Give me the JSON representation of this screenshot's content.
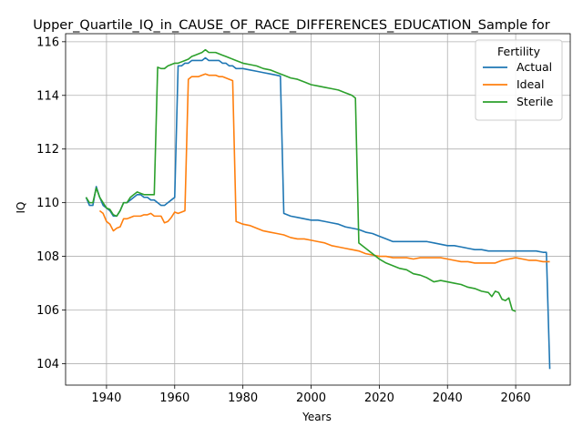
{
  "chart_data": {
    "type": "line",
    "title": "Upper_Quartile_IQ_in_CAUSE_OF_RACE_DIFFERENCES_EDUCATION_Sample for",
    "xlabel": "Years",
    "ylabel": "IQ",
    "xlim": [
      1928,
      2076
    ],
    "ylim": [
      103.2,
      116.3
    ],
    "x_ticks": [
      1940,
      1960,
      1980,
      2000,
      2020,
      2040,
      2060
    ],
    "y_ticks": [
      104,
      106,
      108,
      110,
      112,
      114,
      116
    ],
    "grid": true,
    "legend": {
      "title": "Fertility",
      "placement": "top-right"
    },
    "series": [
      {
        "name": "Actual",
        "color": "#1f77b4",
        "points": [
          [
            1934,
            110.2
          ],
          [
            1935,
            109.9
          ],
          [
            1936,
            109.9
          ],
          [
            1937,
            110.6
          ],
          [
            1938,
            110.2
          ],
          [
            1939,
            109.9
          ],
          [
            1940,
            109.8
          ],
          [
            1941,
            109.7
          ],
          [
            1942,
            109.5
          ],
          [
            1943,
            109.5
          ],
          [
            1944,
            109.7
          ],
          [
            1945,
            110.0
          ],
          [
            1946,
            110.0
          ],
          [
            1947,
            110.1
          ],
          [
            1948,
            110.2
          ],
          [
            1949,
            110.3
          ],
          [
            1950,
            110.3
          ],
          [
            1951,
            110.2
          ],
          [
            1952,
            110.2
          ],
          [
            1953,
            110.1
          ],
          [
            1954,
            110.1
          ],
          [
            1955,
            110.0
          ],
          [
            1956,
            109.9
          ],
          [
            1957,
            109.9
          ],
          [
            1958,
            110.0
          ],
          [
            1959,
            110.1
          ],
          [
            1960,
            110.2
          ],
          [
            1961,
            115.1
          ],
          [
            1962,
            115.1
          ],
          [
            1963,
            115.2
          ],
          [
            1964,
            115.2
          ],
          [
            1965,
            115.3
          ],
          [
            1966,
            115.3
          ],
          [
            1967,
            115.3
          ],
          [
            1968,
            115.3
          ],
          [
            1969,
            115.4
          ],
          [
            1970,
            115.3
          ],
          [
            1971,
            115.3
          ],
          [
            1972,
            115.3
          ],
          [
            1973,
            115.3
          ],
          [
            1974,
            115.2
          ],
          [
            1975,
            115.2
          ],
          [
            1976,
            115.1
          ],
          [
            1977,
            115.1
          ],
          [
            1978,
            115.0
          ],
          [
            1980,
            115.0
          ],
          [
            1982,
            114.95
          ],
          [
            1984,
            114.9
          ],
          [
            1986,
            114.85
          ],
          [
            1988,
            114.8
          ],
          [
            1990,
            114.75
          ],
          [
            1991,
            114.72
          ],
          [
            1992,
            109.6
          ],
          [
            1994,
            109.5
          ],
          [
            1996,
            109.45
          ],
          [
            1998,
            109.4
          ],
          [
            2000,
            109.35
          ],
          [
            2002,
            109.35
          ],
          [
            2004,
            109.3
          ],
          [
            2006,
            109.25
          ],
          [
            2008,
            109.2
          ],
          [
            2010,
            109.1
          ],
          [
            2012,
            109.05
          ],
          [
            2014,
            109.0
          ],
          [
            2016,
            108.9
          ],
          [
            2018,
            108.85
          ],
          [
            2020,
            108.75
          ],
          [
            2022,
            108.65
          ],
          [
            2024,
            108.55
          ],
          [
            2026,
            108.55
          ],
          [
            2028,
            108.55
          ],
          [
            2030,
            108.55
          ],
          [
            2032,
            108.55
          ],
          [
            2034,
            108.55
          ],
          [
            2036,
            108.5
          ],
          [
            2038,
            108.45
          ],
          [
            2040,
            108.4
          ],
          [
            2042,
            108.4
          ],
          [
            2044,
            108.35
          ],
          [
            2046,
            108.3
          ],
          [
            2048,
            108.25
          ],
          [
            2050,
            108.25
          ],
          [
            2052,
            108.2
          ],
          [
            2054,
            108.2
          ],
          [
            2056,
            108.2
          ],
          [
            2058,
            108.2
          ],
          [
            2060,
            108.2
          ],
          [
            2062,
            108.2
          ],
          [
            2064,
            108.2
          ],
          [
            2066,
            108.2
          ],
          [
            2068,
            108.15
          ],
          [
            2069,
            108.15
          ],
          [
            2070,
            103.8
          ]
        ]
      },
      {
        "name": "Ideal",
        "color": "#ff7f0e",
        "points": [
          [
            1938,
            109.7
          ],
          [
            1939,
            109.6
          ],
          [
            1940,
            109.3
          ],
          [
            1941,
            109.2
          ],
          [
            1942,
            108.95
          ],
          [
            1943,
            109.05
          ],
          [
            1944,
            109.1
          ],
          [
            1945,
            109.4
          ],
          [
            1946,
            109.4
          ],
          [
            1947,
            109.45
          ],
          [
            1948,
            109.5
          ],
          [
            1949,
            109.5
          ],
          [
            1950,
            109.5
          ],
          [
            1951,
            109.55
          ],
          [
            1952,
            109.55
          ],
          [
            1953,
            109.6
          ],
          [
            1954,
            109.5
          ],
          [
            1955,
            109.5
          ],
          [
            1956,
            109.5
          ],
          [
            1957,
            109.25
          ],
          [
            1958,
            109.3
          ],
          [
            1959,
            109.45
          ],
          [
            1960,
            109.65
          ],
          [
            1961,
            109.6
          ],
          [
            1962,
            109.65
          ],
          [
            1963,
            109.7
          ],
          [
            1964,
            114.6
          ],
          [
            1965,
            114.7
          ],
          [
            1966,
            114.7
          ],
          [
            1967,
            114.7
          ],
          [
            1968,
            114.75
          ],
          [
            1969,
            114.8
          ],
          [
            1970,
            114.75
          ],
          [
            1971,
            114.75
          ],
          [
            1972,
            114.75
          ],
          [
            1973,
            114.7
          ],
          [
            1974,
            114.7
          ],
          [
            1975,
            114.65
          ],
          [
            1976,
            114.6
          ],
          [
            1977,
            114.55
          ],
          [
            1978,
            109.3
          ],
          [
            1980,
            109.2
          ],
          [
            1982,
            109.15
          ],
          [
            1984,
            109.05
          ],
          [
            1986,
            108.95
          ],
          [
            1988,
            108.9
          ],
          [
            1990,
            108.85
          ],
          [
            1992,
            108.8
          ],
          [
            1994,
            108.7
          ],
          [
            1996,
            108.65
          ],
          [
            1998,
            108.65
          ],
          [
            2000,
            108.6
          ],
          [
            2002,
            108.55
          ],
          [
            2004,
            108.5
          ],
          [
            2006,
            108.4
          ],
          [
            2008,
            108.35
          ],
          [
            2010,
            108.3
          ],
          [
            2012,
            108.25
          ],
          [
            2014,
            108.2
          ],
          [
            2016,
            108.1
          ],
          [
            2018,
            108.05
          ],
          [
            2020,
            108.0
          ],
          [
            2022,
            108.0
          ],
          [
            2024,
            107.95
          ],
          [
            2026,
            107.95
          ],
          [
            2028,
            107.95
          ],
          [
            2030,
            107.9
          ],
          [
            2032,
            107.95
          ],
          [
            2034,
            107.95
          ],
          [
            2036,
            107.95
          ],
          [
            2038,
            107.95
          ],
          [
            2040,
            107.9
          ],
          [
            2042,
            107.85
          ],
          [
            2044,
            107.8
          ],
          [
            2046,
            107.8
          ],
          [
            2048,
            107.75
          ],
          [
            2050,
            107.75
          ],
          [
            2052,
            107.75
          ],
          [
            2054,
            107.75
          ],
          [
            2056,
            107.85
          ],
          [
            2058,
            107.9
          ],
          [
            2060,
            107.95
          ],
          [
            2062,
            107.9
          ],
          [
            2064,
            107.85
          ],
          [
            2066,
            107.85
          ],
          [
            2068,
            107.8
          ],
          [
            2070,
            107.8
          ]
        ]
      },
      {
        "name": "Sterile",
        "color": "#2ca02c",
        "points": [
          [
            1934,
            110.2
          ],
          [
            1935,
            110.0
          ],
          [
            1936,
            110.0
          ],
          [
            1937,
            110.55
          ],
          [
            1938,
            110.2
          ],
          [
            1939,
            110.0
          ],
          [
            1940,
            109.8
          ],
          [
            1941,
            109.75
          ],
          [
            1942,
            109.55
          ],
          [
            1943,
            109.5
          ],
          [
            1944,
            109.7
          ],
          [
            1945,
            110.0
          ],
          [
            1946,
            110.0
          ],
          [
            1947,
            110.2
          ],
          [
            1948,
            110.3
          ],
          [
            1949,
            110.4
          ],
          [
            1950,
            110.35
          ],
          [
            1951,
            110.3
          ],
          [
            1952,
            110.3
          ],
          [
            1953,
            110.3
          ],
          [
            1954,
            110.3
          ],
          [
            1955,
            115.05
          ],
          [
            1956,
            115.0
          ],
          [
            1957,
            115.0
          ],
          [
            1958,
            115.1
          ],
          [
            1959,
            115.15
          ],
          [
            1960,
            115.2
          ],
          [
            1961,
            115.2
          ],
          [
            1962,
            115.25
          ],
          [
            1963,
            115.3
          ],
          [
            1964,
            115.35
          ],
          [
            1965,
            115.45
          ],
          [
            1966,
            115.5
          ],
          [
            1967,
            115.55
          ],
          [
            1968,
            115.6
          ],
          [
            1969,
            115.7
          ],
          [
            1970,
            115.6
          ],
          [
            1971,
            115.6
          ],
          [
            1972,
            115.6
          ],
          [
            1973,
            115.55
          ],
          [
            1974,
            115.5
          ],
          [
            1975,
            115.45
          ],
          [
            1976,
            115.4
          ],
          [
            1977,
            115.35
          ],
          [
            1978,
            115.3
          ],
          [
            1980,
            115.2
          ],
          [
            1982,
            115.15
          ],
          [
            1984,
            115.1
          ],
          [
            1986,
            115.0
          ],
          [
            1988,
            114.95
          ],
          [
            1990,
            114.85
          ],
          [
            1992,
            114.75
          ],
          [
            1994,
            114.65
          ],
          [
            1996,
            114.6
          ],
          [
            1998,
            114.5
          ],
          [
            2000,
            114.4
          ],
          [
            2002,
            114.35
          ],
          [
            2004,
            114.3
          ],
          [
            2006,
            114.25
          ],
          [
            2008,
            114.2
          ],
          [
            2010,
            114.1
          ],
          [
            2012,
            114.0
          ],
          [
            2013,
            113.9
          ],
          [
            2014,
            108.5
          ],
          [
            2016,
            108.3
          ],
          [
            2018,
            108.1
          ],
          [
            2020,
            107.9
          ],
          [
            2022,
            107.75
          ],
          [
            2024,
            107.65
          ],
          [
            2026,
            107.55
          ],
          [
            2028,
            107.5
          ],
          [
            2030,
            107.35
          ],
          [
            2032,
            107.3
          ],
          [
            2034,
            107.2
          ],
          [
            2036,
            107.05
          ],
          [
            2038,
            107.1
          ],
          [
            2040,
            107.05
          ],
          [
            2042,
            107.0
          ],
          [
            2044,
            106.95
          ],
          [
            2046,
            106.85
          ],
          [
            2048,
            106.8
          ],
          [
            2050,
            106.7
          ],
          [
            2052,
            106.65
          ],
          [
            2053,
            106.5
          ],
          [
            2054,
            106.7
          ],
          [
            2055,
            106.65
          ],
          [
            2056,
            106.4
          ],
          [
            2057,
            106.35
          ],
          [
            2058,
            106.45
          ],
          [
            2059,
            106.0
          ],
          [
            2060,
            105.95
          ]
        ]
      }
    ]
  }
}
